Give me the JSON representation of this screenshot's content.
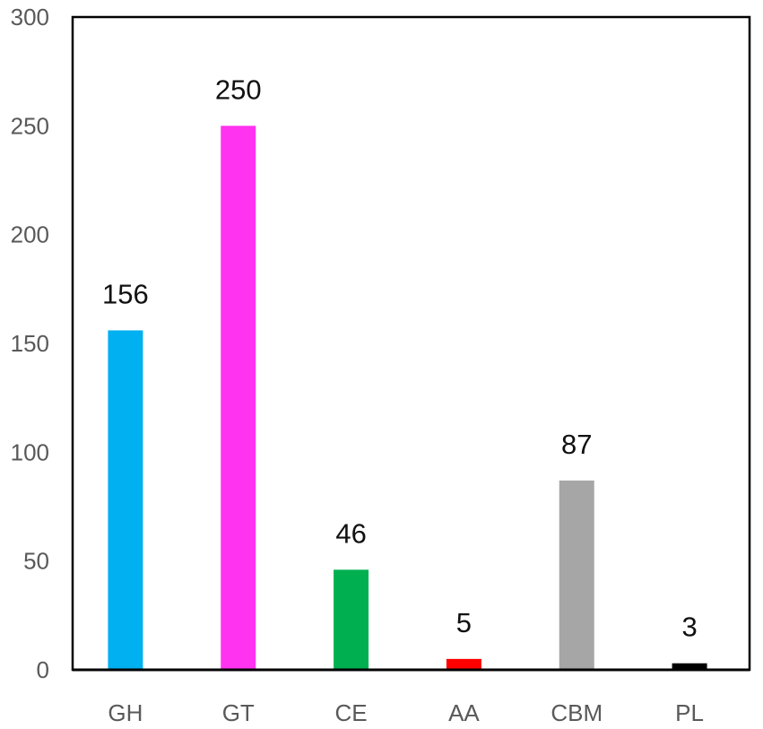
{
  "chart_data": {
    "type": "bar",
    "categories": [
      "GH",
      "GT",
      "CE",
      "AA",
      "CBM",
      "PL"
    ],
    "values": [
      156,
      250,
      46,
      5,
      87,
      3
    ],
    "data_labels": [
      "156",
      "250",
      "46",
      "5",
      "87",
      "3"
    ],
    "colors": [
      "#00B0F0",
      "#FF33F0",
      "#00B050",
      "#FF0000",
      "#A6A6A6",
      "#000000"
    ],
    "ylim": [
      0,
      300
    ],
    "yticks": [
      0,
      50,
      100,
      150,
      200,
      250,
      300
    ],
    "ytick_labels": [
      "0",
      "50",
      "100",
      "150",
      "200",
      "250",
      "300"
    ],
    "grid": false,
    "legend": "none"
  }
}
